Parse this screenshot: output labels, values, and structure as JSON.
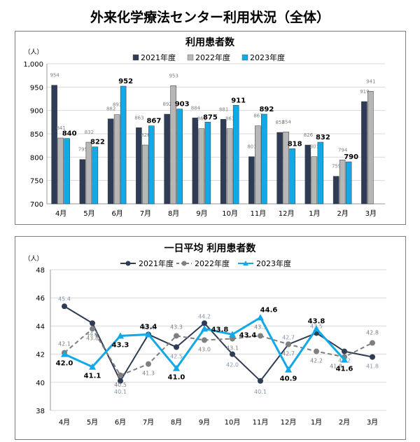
{
  "page": {
    "title": "外来化学療法センター利用状況（全体）"
  },
  "chart_data": [
    {
      "type": "bar",
      "title": "利用患者数",
      "yunit": "（人）",
      "ylim": [
        700,
        1000
      ],
      "yticks": [
        "700",
        "750",
        "800",
        "850",
        "900",
        "950",
        "1,000"
      ],
      "grid": true,
      "legend": "top",
      "categories": [
        "4月",
        "5月",
        "6月",
        "7月",
        "8月",
        "9月",
        "10月",
        "11月",
        "12月",
        "1月",
        "2月",
        "3月"
      ],
      "series": [
        {
          "name": "2021年度",
          "color": "#2e3d55",
          "values": [
            954,
            795,
            882,
            863,
            892,
            884,
            881,
            801,
            853,
            826,
            759,
            919
          ]
        },
        {
          "name": "2022年度",
          "color": "#b7b7b7",
          "values": [
            841,
            832,
            891,
            826,
            953,
            861,
            861,
            867,
            854,
            801,
            794,
            941
          ]
        },
        {
          "name": "2023年度",
          "color": "#11a9e6",
          "values": [
            840,
            822,
            952,
            867,
            903,
            875,
            911,
            892,
            818,
            832,
            790,
            null
          ]
        }
      ]
    },
    {
      "type": "line",
      "title": "一日平均 利用患者数",
      "yunit": "（人）",
      "ylim": [
        38,
        48
      ],
      "yticks": [
        "38",
        "40",
        "42",
        "44",
        "46",
        "48"
      ],
      "grid": true,
      "legend": "top",
      "categories": [
        "4月",
        "5月",
        "6月",
        "7月",
        "8月",
        "9月",
        "10月",
        "11月",
        "12月",
        "1月",
        "2月",
        "3月"
      ],
      "series": [
        {
          "name": "2021年度",
          "color": "#2e3d55",
          "values": [
            45.4,
            44.2,
            40.1,
            43.4,
            42.5,
            44.2,
            42.0,
            40.1,
            42.7,
            43.5,
            42.2,
            41.8
          ]
        },
        {
          "name": "2022年度",
          "color": "#7f7f7f",
          "values": [
            42.1,
            43.8,
            40.5,
            41.3,
            43.3,
            43.0,
            43.1,
            43.3,
            42.7,
            42.2,
            41.8,
            42.8
          ]
        },
        {
          "name": "2023年度",
          "color": "#11a9e6",
          "values": [
            42.0,
            41.1,
            43.3,
            43.4,
            41.0,
            43.8,
            43.4,
            44.6,
            40.9,
            43.8,
            41.6,
            null
          ]
        }
      ]
    }
  ]
}
